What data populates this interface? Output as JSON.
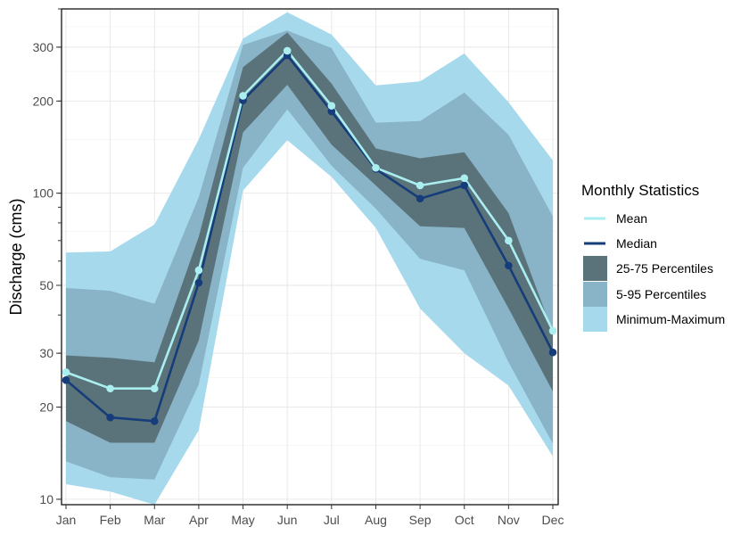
{
  "chart_data": {
    "type": "area",
    "xlabel": "",
    "ylabel": "Discharge (cms)",
    "y_scale": "log",
    "ylim": [
      10,
      400
    ],
    "y_ticks": [
      10,
      20,
      30,
      50,
      100,
      200,
      300
    ],
    "grid": true,
    "legend": {
      "title": "Monthly Statistics",
      "position": "right",
      "entries": [
        "Mean",
        "Median",
        "25-75 Percentiles",
        "5-95 Percentiles",
        "Minimum-Maximum"
      ]
    },
    "categories": [
      "Jan",
      "Feb",
      "Mar",
      "Apr",
      "May",
      "Jun",
      "Jul",
      "Aug",
      "Sep",
      "Oct",
      "Nov",
      "Dec"
    ],
    "ranges": [
      {
        "name": "Minimum-Maximum",
        "color": "#a6d9ec",
        "low": [
          11.2,
          10.6,
          9.6,
          16.8,
          102,
          149,
          113,
          77,
          42,
          30,
          23.5,
          13.8
        ],
        "high": [
          64,
          64.5,
          79,
          150,
          320,
          390,
          330,
          225,
          232,
          286,
          198,
          128
        ]
      },
      {
        "name": "5-95 Percentiles",
        "color": "#89b3c6",
        "low": [
          13.3,
          11.8,
          11.6,
          23.7,
          121,
          188,
          123,
          89,
          61,
          56,
          28,
          15.2
        ],
        "high": [
          49,
          48,
          43.5,
          97,
          305,
          340,
          298,
          170,
          172,
          213,
          155,
          84
        ]
      },
      {
        "name": "25-75 Percentiles",
        "color": "#5a737b",
        "low": [
          18,
          15.3,
          15.3,
          33,
          158,
          226,
          144,
          106,
          78,
          77,
          42,
          22.5
        ],
        "high": [
          29.5,
          29,
          28,
          72,
          258,
          335,
          228,
          140,
          130,
          136,
          86,
          35
        ]
      }
    ],
    "series": [
      {
        "name": "Mean",
        "color": "#aaeef0",
        "values": [
          26,
          23,
          23,
          56,
          208,
          292,
          193,
          121,
          106,
          112,
          70,
          35.5
        ]
      },
      {
        "name": "Median",
        "color": "#163d7a",
        "values": [
          24.5,
          18.5,
          18,
          51,
          201,
          282,
          185,
          120,
          96,
          106,
          58,
          30.2
        ]
      }
    ]
  }
}
